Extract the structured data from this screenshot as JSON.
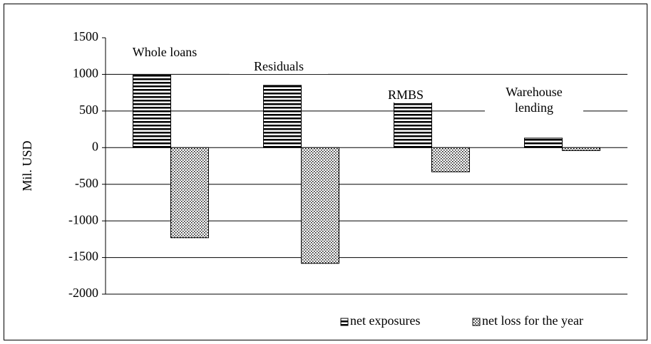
{
  "chart_data": {
    "type": "bar",
    "y_label": "Mil. USD",
    "categories": [
      "Whole loans",
      "Residuals",
      "RMBS",
      "Warehouse lending"
    ],
    "series": [
      {
        "name": "net exposures",
        "color": "#000000",
        "values": [
          990,
          850,
          720,
          130
        ]
      },
      {
        "name": "net loss for the year",
        "color": "#000000",
        "values": [
          -1230,
          -1580,
          -330,
          -40
        ]
      }
    ],
    "ylim": [
      -2000,
      1500
    ],
    "yticks": [
      -2000,
      -1500,
      -1000,
      -500,
      0,
      500,
      1000,
      1500
    ],
    "grid": true,
    "legend": "bottom-right"
  }
}
